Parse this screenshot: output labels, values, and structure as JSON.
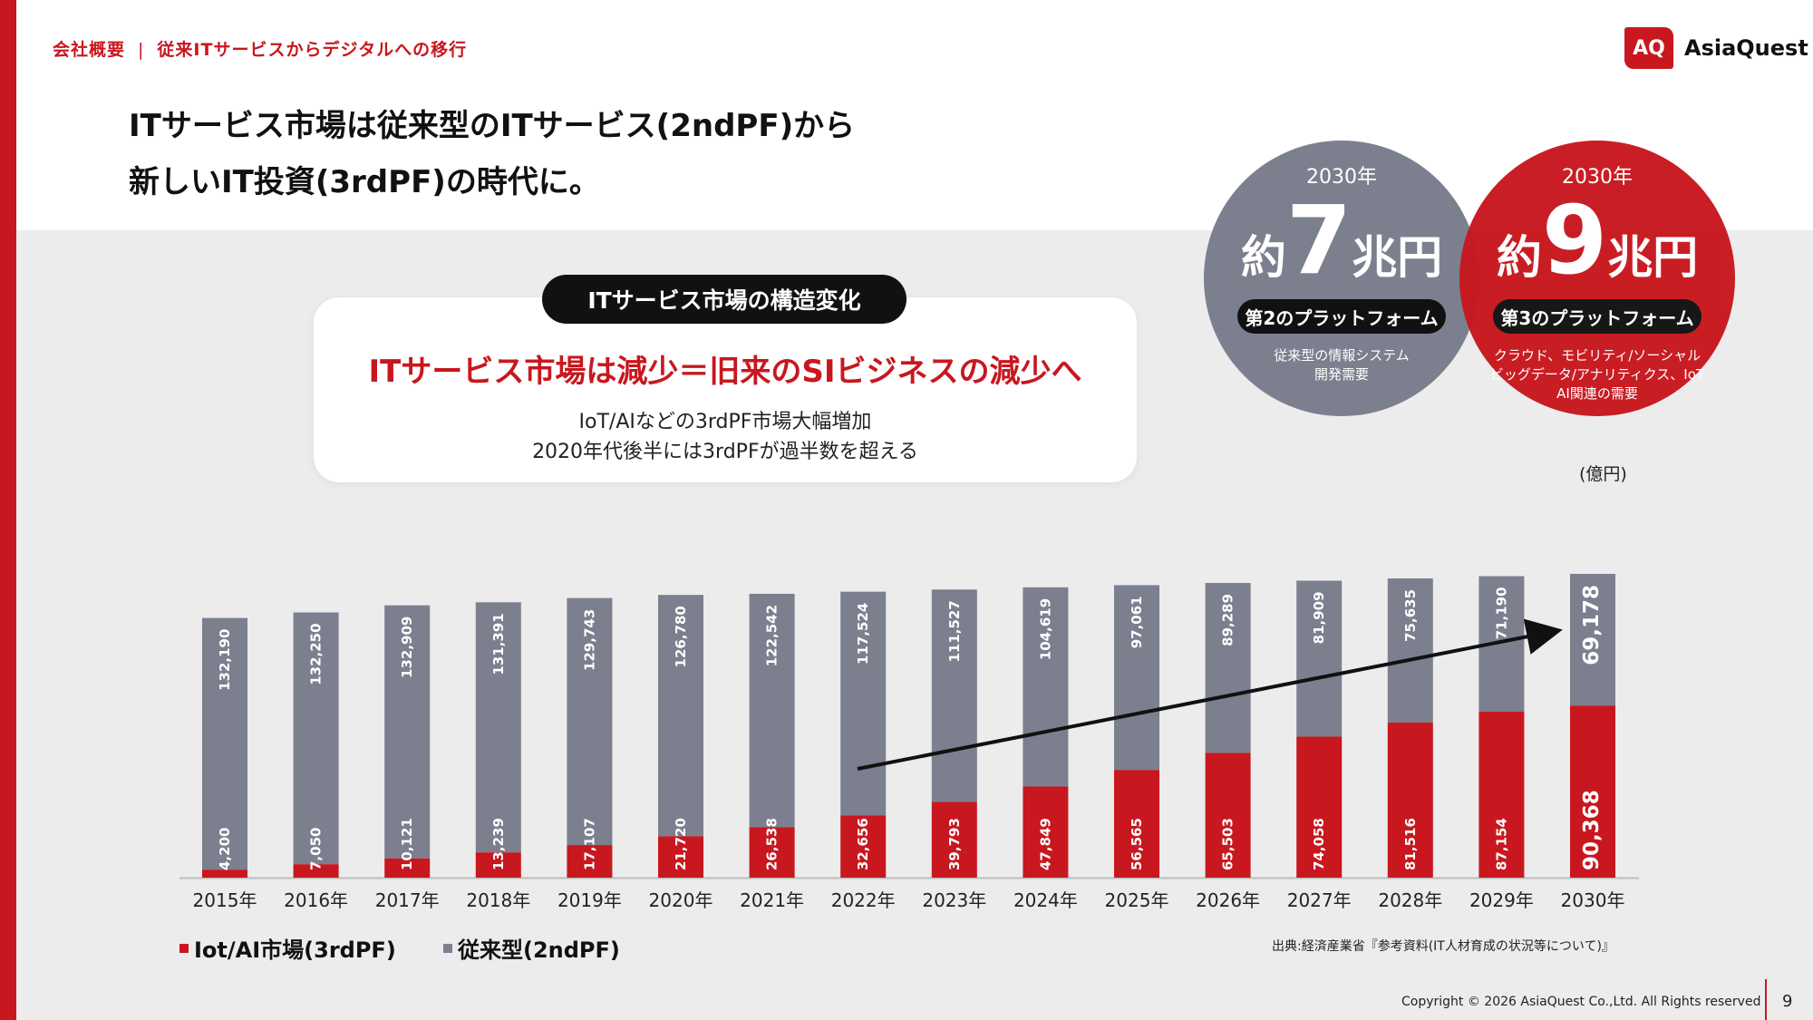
{
  "header": {
    "section": "会社概要",
    "separator": "|",
    "subsection": "従来ITサービスからデジタルへの移行",
    "logo_mark": "AQ",
    "logo_text": "AsiaQuest"
  },
  "headline": {
    "line1": "ITサービス市場は従来型のITサービス(2ndPF)から",
    "line2": "新しいIT投資(3rdPF)の時代に。"
  },
  "card": {
    "tag": "ITサービス市場の構造変化",
    "title": "ITサービス市場は減少＝旧来のSIビジネスの減少へ",
    "line1": "IoT/AIなどの3rdPF市場大幅増加",
    "line2": "2020年代後半には3rdPFが過半数を超える"
  },
  "circles": {
    "gray": {
      "year": "2030年",
      "prefix": "約",
      "number": "7",
      "unit": "兆円",
      "platform": "第2のプラットフォーム",
      "desc1": "従来型の情報システム",
      "desc2": "開発需要",
      "desc3": ""
    },
    "red": {
      "year": "2030年",
      "prefix": "約",
      "number": "9",
      "unit": "兆円",
      "platform": "第3のプラットフォーム",
      "desc1": "クラウド、モビリティ/ソーシャル",
      "desc2": "ビッグデータ/アナリティクス、IoT",
      "desc3": "AI関連の需要"
    }
  },
  "unit_label": "(億円)",
  "legend": {
    "series1": "Iot/AI市場(3rdPF)",
    "series2": "従来型(2ndPF)"
  },
  "source": "出典:経済産業省『参考資料(IT人材育成の状況等について)』",
  "copyright": "Copyright © 2026 AsiaQuest Co.,Ltd. All Rights reserved",
  "page_number": "9",
  "colors": {
    "accent_red": "#c8171e",
    "bar_gray": "#7c7f8e",
    "background_gray": "#ececec"
  },
  "chart_data": {
    "type": "bar",
    "stacked": true,
    "categories": [
      "2015年",
      "2016年",
      "2017年",
      "2018年",
      "2019年",
      "2020年",
      "2021年",
      "2022年",
      "2023年",
      "2024年",
      "2025年",
      "2026年",
      "2027年",
      "2028年",
      "2029年",
      "2030年"
    ],
    "series": [
      {
        "name": "Iot/AI市場(3rdPF)",
        "color": "#c8171e",
        "values": [
          4200,
          7050,
          10121,
          13239,
          17107,
          21720,
          26538,
          32656,
          39793,
          47849,
          56565,
          65503,
          74058,
          81516,
          87154,
          90368
        ],
        "labels": [
          "4,200",
          "7,050",
          "10,121",
          "13,239",
          "17,107",
          "21,720",
          "26,538",
          "32,656",
          "39,793",
          "47,849",
          "56,565",
          "65,503",
          "74,058",
          "81,516",
          "87,154",
          "90,368"
        ]
      },
      {
        "name": "従来型(2ndPF)",
        "color": "#7c7f8e",
        "values": [
          132190,
          132250,
          132909,
          131391,
          129743,
          126780,
          122542,
          117524,
          111527,
          104619,
          97061,
          89289,
          81909,
          75635,
          71190,
          69178
        ],
        "labels": [
          "132,190",
          "132,250",
          "132,909",
          "131,391",
          "129,743",
          "126,780",
          "122,542",
          "117,524",
          "111,527",
          "104,619",
          "97,061",
          "89,289",
          "81,909",
          "75,635",
          "71,190",
          "69,178"
        ]
      }
    ],
    "ylabel": "(億円)",
    "ylim": [
      0,
      160000
    ],
    "grid": false,
    "legend": "bottom-left",
    "annotation": "upward trend arrow from 2022 to 2030"
  }
}
